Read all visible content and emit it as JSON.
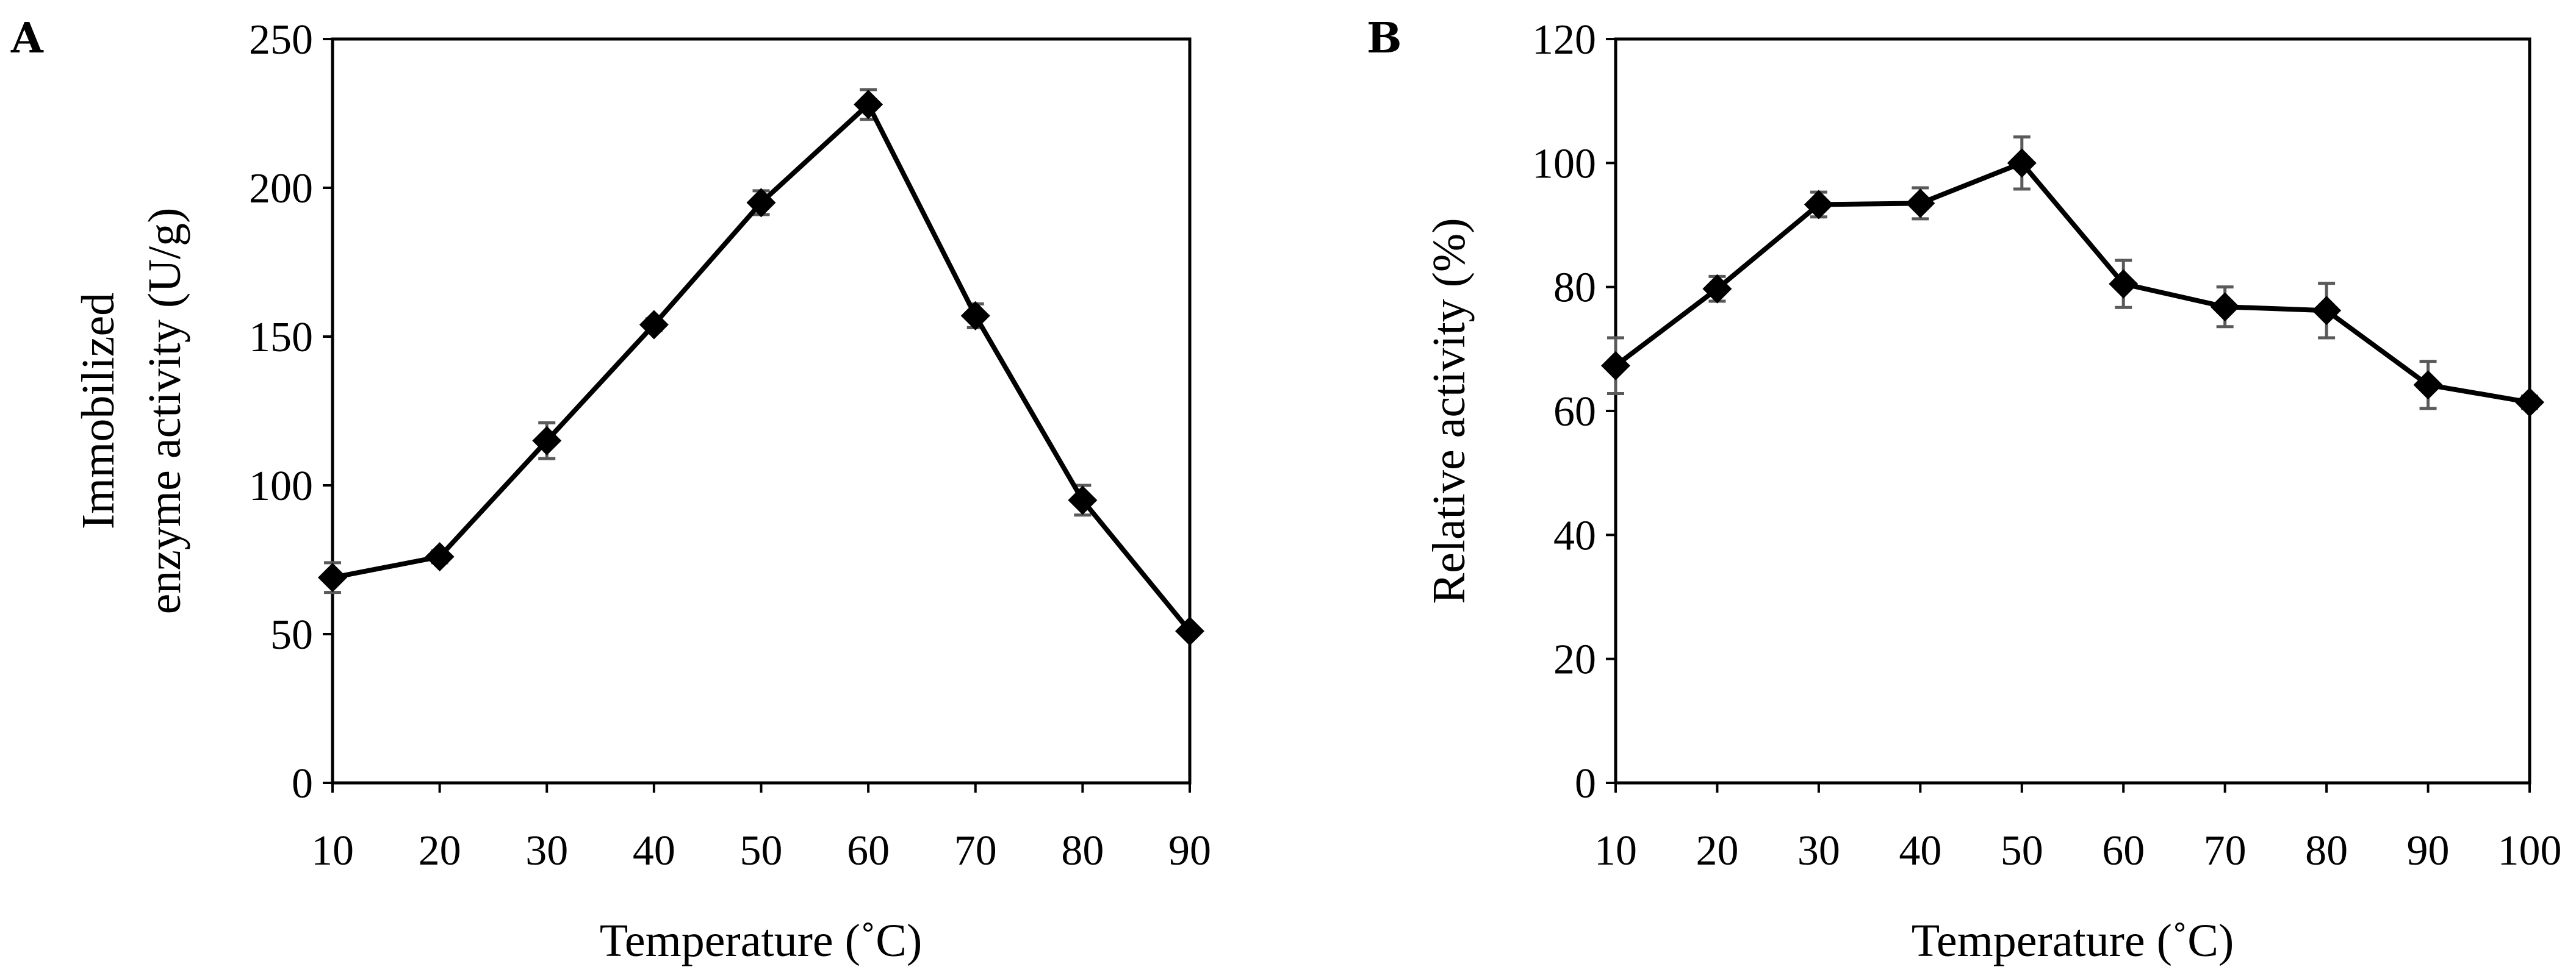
{
  "chart_data": [
    {
      "panel": "A",
      "type": "line",
      "title": "",
      "xlabel": "Temperature (˚C)",
      "ylabel_lines": [
        "Immobilized",
        "enzyme activity (U/g)"
      ],
      "x": [
        10,
        20,
        30,
        40,
        50,
        60,
        70,
        80,
        90
      ],
      "values": [
        69,
        76,
        115,
        154,
        195,
        228,
        157,
        95,
        51
      ],
      "errors": [
        5,
        2,
        6,
        2,
        4,
        5,
        4,
        5,
        1
      ],
      "xlim": [
        10,
        90
      ],
      "ylim": [
        0,
        250
      ],
      "xticks": [
        10,
        20,
        30,
        40,
        50,
        60,
        70,
        80,
        90
      ],
      "yticks": [
        0,
        50,
        100,
        150,
        200,
        250
      ],
      "grid": false,
      "marker": "diamond"
    },
    {
      "panel": "B",
      "type": "line",
      "title": "",
      "xlabel": "Temperature (˚C)",
      "ylabel": "Relative activity (%)",
      "x": [
        10,
        20,
        30,
        40,
        50,
        60,
        70,
        80,
        90,
        100
      ],
      "values": [
        67.3,
        79.7,
        93.3,
        93.5,
        100,
        80.5,
        76.8,
        76.2,
        64.2,
        61.4
      ],
      "errors": [
        4.5,
        2.0,
        2.0,
        2.5,
        4.2,
        3.8,
        3.2,
        4.4,
        3.8,
        1.0
      ],
      "xlim": [
        10,
        100
      ],
      "ylim": [
        0,
        120
      ],
      "xticks": [
        10,
        20,
        30,
        40,
        50,
        60,
        70,
        80,
        90,
        100
      ],
      "yticks": [
        0,
        20,
        40,
        60,
        80,
        100,
        120
      ],
      "grid": false,
      "marker": "diamond"
    }
  ]
}
